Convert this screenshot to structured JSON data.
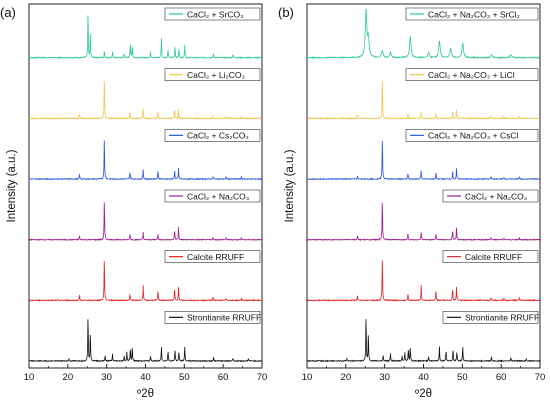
{
  "chart_data": [
    {
      "type": "line",
      "panel_label": "(a)",
      "xlabel": "º2θ",
      "ylabel": "Intensity (a.u.)",
      "xlim": [
        10,
        70
      ],
      "x_ticks": [
        10,
        20,
        30,
        40,
        50,
        60,
        70
      ],
      "legend_placement": "right of each trace",
      "series": [
        {
          "name": "CaCl₂ + SrCO₃",
          "color": "#2ecc8f",
          "peaks": [
            [
              25.2,
              1.0
            ],
            [
              25.8,
              0.55
            ],
            [
              29.4,
              0.15
            ],
            [
              31.5,
              0.12
            ],
            [
              34.5,
              0.08
            ],
            [
              36.1,
              0.35
            ],
            [
              36.6,
              0.25
            ],
            [
              41.3,
              0.12
            ],
            [
              44.1,
              0.42
            ],
            [
              45.8,
              0.18
            ],
            [
              47.6,
              0.25
            ],
            [
              48.6,
              0.2
            ],
            [
              50.1,
              0.28
            ],
            [
              57.5,
              0.08
            ],
            [
              62.5,
              0.08
            ]
          ]
        },
        {
          "name": "CaCl₂ + Li₂CO₃",
          "color": "#f2c24e",
          "peaks": [
            [
              23.0,
              0.1
            ],
            [
              29.4,
              1.0
            ],
            [
              36.0,
              0.15
            ],
            [
              39.4,
              0.22
            ],
            [
              43.2,
              0.18
            ],
            [
              47.5,
              0.22
            ],
            [
              48.5,
              0.22
            ],
            [
              57.4,
              0.05
            ],
            [
              60.7,
              0.05
            ],
            [
              64.7,
              0.05
            ]
          ]
        },
        {
          "name": "CaCl₂ + Cs₂CO₃",
          "color": "#2b54d9",
          "peaks": [
            [
              23.0,
              0.12
            ],
            [
              29.4,
              1.0
            ],
            [
              36.0,
              0.18
            ],
            [
              39.4,
              0.22
            ],
            [
              43.2,
              0.2
            ],
            [
              47.5,
              0.22
            ],
            [
              48.5,
              0.25
            ],
            [
              57.4,
              0.05
            ],
            [
              60.7,
              0.05
            ],
            [
              64.7,
              0.05
            ]
          ]
        },
        {
          "name": "CaCl₂ + Na₂CO₃",
          "color": "#9b1d8f",
          "peaks": [
            [
              23.0,
              0.1
            ],
            [
              29.4,
              1.0
            ],
            [
              36.0,
              0.15
            ],
            [
              39.4,
              0.18
            ],
            [
              43.2,
              0.15
            ],
            [
              47.5,
              0.25
            ],
            [
              48.5,
              0.3
            ],
            [
              57.4,
              0.05
            ],
            [
              60.7,
              0.05
            ],
            [
              64.7,
              0.05
            ]
          ]
        },
        {
          "name": "Calcite RRUFF",
          "color": "#e02424",
          "peaks": [
            [
              23.0,
              0.12
            ],
            [
              29.4,
              1.0
            ],
            [
              36.0,
              0.15
            ],
            [
              39.4,
              0.32
            ],
            [
              43.2,
              0.22
            ],
            [
              47.5,
              0.28
            ],
            [
              48.5,
              0.3
            ],
            [
              57.4,
              0.07
            ],
            [
              60.7,
              0.05
            ],
            [
              64.7,
              0.05
            ]
          ]
        },
        {
          "name": "Strontianite RRUFF",
          "color": "#111111",
          "peaks": [
            [
              20.3,
              0.05
            ],
            [
              25.2,
              1.0
            ],
            [
              25.8,
              0.6
            ],
            [
              29.6,
              0.12
            ],
            [
              31.5,
              0.15
            ],
            [
              34.5,
              0.1
            ],
            [
              35.2,
              0.18
            ],
            [
              36.1,
              0.28
            ],
            [
              36.6,
              0.3
            ],
            [
              41.3,
              0.1
            ],
            [
              44.1,
              0.3
            ],
            [
              45.8,
              0.22
            ],
            [
              47.6,
              0.25
            ],
            [
              48.6,
              0.2
            ],
            [
              50.1,
              0.3
            ],
            [
              57.5,
              0.08
            ],
            [
              62.5,
              0.07
            ],
            [
              66.5,
              0.05
            ]
          ]
        }
      ]
    },
    {
      "type": "line",
      "panel_label": "(b)",
      "xlabel": "º2θ",
      "ylabel": "Intensity (a.u.)",
      "xlim": [
        10,
        70
      ],
      "x_ticks": [
        10,
        20,
        30,
        40,
        50,
        60,
        70
      ],
      "legend_placement": "right of each trace",
      "series": [
        {
          "name": "CaCl₂ + Na₂CO₃ + SrCl₂",
          "color": "#2ecc8f",
          "broad": true,
          "peaks": [
            [
              25.2,
              1.0
            ],
            [
              25.8,
              0.4
            ],
            [
              29.4,
              0.15
            ],
            [
              31.5,
              0.1
            ],
            [
              36.6,
              0.45
            ],
            [
              41.3,
              0.1
            ],
            [
              44.1,
              0.35
            ],
            [
              47.0,
              0.2
            ],
            [
              50.1,
              0.3
            ],
            [
              57.5,
              0.06
            ],
            [
              62.5,
              0.06
            ]
          ]
        },
        {
          "name": "CaCl₂ + Na₂CO₃ + LiCl",
          "color": "#f2c24e",
          "peaks": [
            [
              23.0,
              0.08
            ],
            [
              29.4,
              1.0
            ],
            [
              36.0,
              0.12
            ],
            [
              39.4,
              0.15
            ],
            [
              43.2,
              0.12
            ],
            [
              47.5,
              0.18
            ],
            [
              48.5,
              0.2
            ],
            [
              57.4,
              0.05
            ],
            [
              60.7,
              0.05
            ],
            [
              64.7,
              0.05
            ]
          ]
        },
        {
          "name": "CaCl₂ + Na₂CO₃ + CsCl",
          "color": "#2b54d9",
          "peaks": [
            [
              23.0,
              0.08
            ],
            [
              29.4,
              1.0
            ],
            [
              36.0,
              0.14
            ],
            [
              39.4,
              0.18
            ],
            [
              43.2,
              0.15
            ],
            [
              47.5,
              0.2
            ],
            [
              48.5,
              0.24
            ],
            [
              57.4,
              0.05
            ],
            [
              60.7,
              0.05
            ],
            [
              64.7,
              0.05
            ]
          ]
        },
        {
          "name": "CaCl₂ + Na₂CO₃",
          "color": "#9b1d8f",
          "peaks": [
            [
              23.0,
              0.1
            ],
            [
              29.4,
              1.0
            ],
            [
              36.0,
              0.15
            ],
            [
              39.4,
              0.18
            ],
            [
              43.2,
              0.15
            ],
            [
              47.5,
              0.25
            ],
            [
              48.5,
              0.3
            ],
            [
              57.4,
              0.05
            ],
            [
              60.7,
              0.05
            ],
            [
              64.7,
              0.05
            ]
          ]
        },
        {
          "name": "Calcite RRUFF",
          "color": "#e02424",
          "peaks": [
            [
              23.0,
              0.12
            ],
            [
              29.4,
              1.0
            ],
            [
              36.0,
              0.15
            ],
            [
              39.4,
              0.32
            ],
            [
              43.2,
              0.22
            ],
            [
              47.5,
              0.28
            ],
            [
              48.5,
              0.3
            ],
            [
              57.4,
              0.07
            ],
            [
              60.7,
              0.05
            ],
            [
              64.7,
              0.05
            ]
          ]
        },
        {
          "name": "Strontianite RRUFF",
          "color": "#111111",
          "peaks": [
            [
              20.3,
              0.05
            ],
            [
              25.2,
              1.0
            ],
            [
              25.8,
              0.6
            ],
            [
              29.6,
              0.12
            ],
            [
              31.5,
              0.15
            ],
            [
              34.5,
              0.1
            ],
            [
              35.2,
              0.18
            ],
            [
              36.1,
              0.28
            ],
            [
              36.6,
              0.3
            ],
            [
              41.3,
              0.1
            ],
            [
              44.1,
              0.3
            ],
            [
              45.8,
              0.22
            ],
            [
              47.6,
              0.25
            ],
            [
              48.6,
              0.2
            ],
            [
              50.1,
              0.3
            ],
            [
              57.5,
              0.08
            ],
            [
              62.5,
              0.07
            ],
            [
              66.5,
              0.05
            ]
          ]
        }
      ]
    }
  ]
}
